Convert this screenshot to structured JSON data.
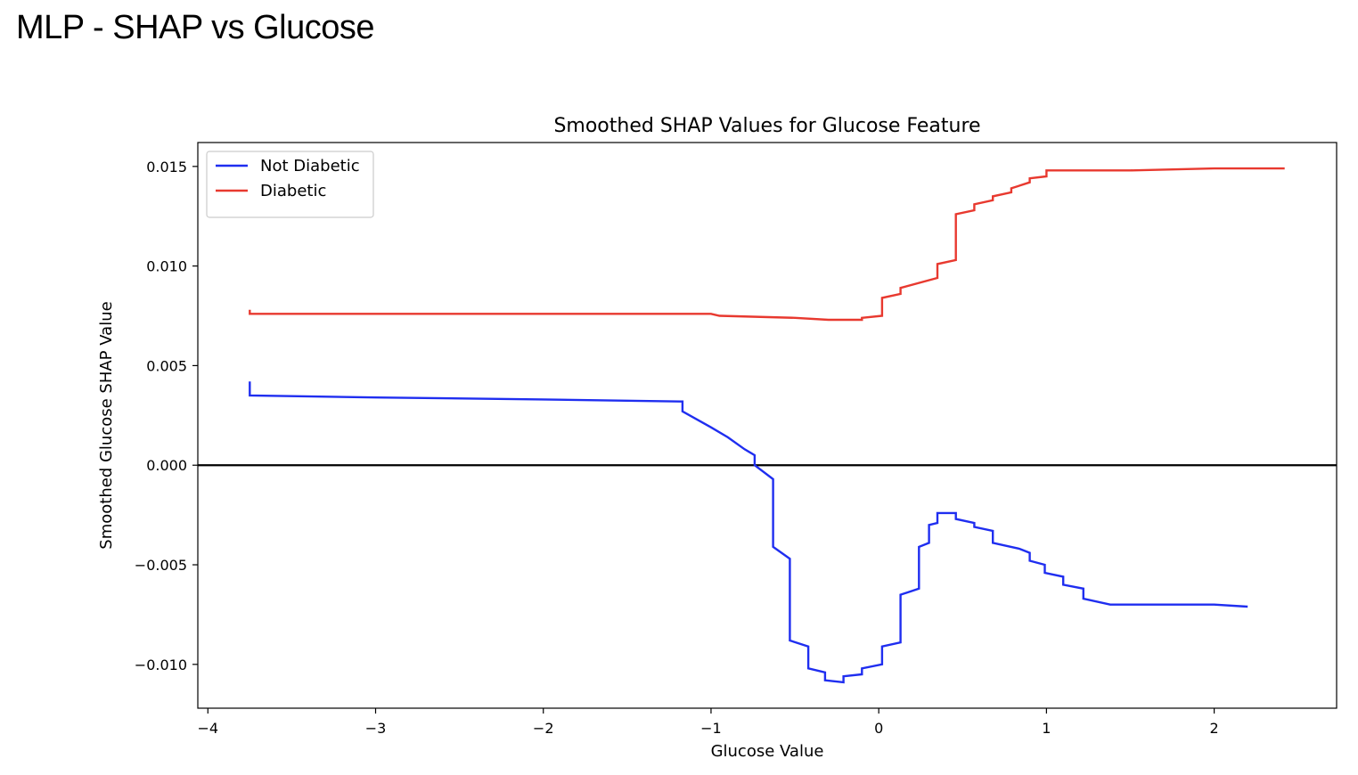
{
  "page_title": "MLP - SHAP vs Glucose",
  "chart_data": {
    "type": "line",
    "title": "Smoothed SHAP Values for Glucose Feature",
    "xlabel": "Glucose Value",
    "ylabel": "Smoothed Glucose SHAP Value",
    "xlim": [
      -4.06,
      2.73
    ],
    "ylim": [
      -0.0122,
      0.0162
    ],
    "xticks": [
      {
        "value": -4,
        "label": "−4"
      },
      {
        "value": -3,
        "label": "−3"
      },
      {
        "value": -2,
        "label": "−2"
      },
      {
        "value": -1,
        "label": "−1"
      },
      {
        "value": 0,
        "label": "0"
      },
      {
        "value": 1,
        "label": "1"
      },
      {
        "value": 2,
        "label": "2"
      }
    ],
    "yticks": [
      {
        "value": 0.015,
        "label": "0.015"
      },
      {
        "value": 0.01,
        "label": "0.010"
      },
      {
        "value": 0.005,
        "label": "0.005"
      },
      {
        "value": 0.0,
        "label": "0.000"
      },
      {
        "value": -0.005,
        "label": "−0.005"
      },
      {
        "value": -0.01,
        "label": "−0.010"
      }
    ],
    "hline": {
      "y": 0.0,
      "color": "#000000"
    },
    "grid": false,
    "legend_position": "top-left",
    "series": [
      {
        "name": "Not Diabetic",
        "color": "#1f2ef0",
        "points": [
          [
            -3.75,
            0.0042
          ],
          [
            -3.75,
            0.0035
          ],
          [
            -3.0,
            0.0034
          ],
          [
            -2.0,
            0.0033
          ],
          [
            -1.17,
            0.0032
          ],
          [
            -1.17,
            0.0027
          ],
          [
            -1.0,
            0.0019
          ],
          [
            -0.9,
            0.0014
          ],
          [
            -0.8,
            0.0008
          ],
          [
            -0.74,
            0.0005
          ],
          [
            -0.74,
            0.0
          ],
          [
            -0.63,
            -0.0007
          ],
          [
            -0.63,
            -0.0041
          ],
          [
            -0.53,
            -0.0047
          ],
          [
            -0.53,
            -0.0088
          ],
          [
            -0.42,
            -0.0091
          ],
          [
            -0.42,
            -0.0102
          ],
          [
            -0.32,
            -0.0104
          ],
          [
            -0.32,
            -0.0108
          ],
          [
            -0.21,
            -0.0109
          ],
          [
            -0.21,
            -0.0106
          ],
          [
            -0.1,
            -0.0105
          ],
          [
            -0.1,
            -0.0102
          ],
          [
            0.02,
            -0.01
          ],
          [
            0.02,
            -0.0091
          ],
          [
            0.13,
            -0.0089
          ],
          [
            0.13,
            -0.0065
          ],
          [
            0.24,
            -0.0062
          ],
          [
            0.24,
            -0.0041
          ],
          [
            0.3,
            -0.0039
          ],
          [
            0.3,
            -0.003
          ],
          [
            0.35,
            -0.0029
          ],
          [
            0.35,
            -0.0024
          ],
          [
            0.46,
            -0.0024
          ],
          [
            0.46,
            -0.0027
          ],
          [
            0.57,
            -0.0029
          ],
          [
            0.57,
            -0.0031
          ],
          [
            0.68,
            -0.0033
          ],
          [
            0.68,
            -0.0039
          ],
          [
            0.84,
            -0.0042
          ],
          [
            0.9,
            -0.0044
          ],
          [
            0.9,
            -0.0048
          ],
          [
            0.99,
            -0.005
          ],
          [
            0.99,
            -0.0054
          ],
          [
            1.1,
            -0.0056
          ],
          [
            1.1,
            -0.006
          ],
          [
            1.22,
            -0.0062
          ],
          [
            1.22,
            -0.0067
          ],
          [
            1.38,
            -0.007
          ],
          [
            2.0,
            -0.007
          ],
          [
            2.2,
            -0.0071
          ]
        ]
      },
      {
        "name": "Diabetic",
        "color": "#e8392f",
        "points": [
          [
            -3.75,
            0.0078
          ],
          [
            -3.75,
            0.0076
          ],
          [
            -3.0,
            0.0076
          ],
          [
            -2.0,
            0.0076
          ],
          [
            -1.0,
            0.0076
          ],
          [
            -0.95,
            0.0075
          ],
          [
            -0.5,
            0.0074
          ],
          [
            -0.3,
            0.0073
          ],
          [
            -0.25,
            0.0073
          ],
          [
            -0.1,
            0.0073
          ],
          [
            -0.1,
            0.0074
          ],
          [
            0.02,
            0.0075
          ],
          [
            0.02,
            0.0084
          ],
          [
            0.13,
            0.0086
          ],
          [
            0.13,
            0.0089
          ],
          [
            0.35,
            0.0094
          ],
          [
            0.35,
            0.0101
          ],
          [
            0.46,
            0.0103
          ],
          [
            0.46,
            0.0126
          ],
          [
            0.57,
            0.0128
          ],
          [
            0.57,
            0.0131
          ],
          [
            0.68,
            0.0133
          ],
          [
            0.68,
            0.0135
          ],
          [
            0.79,
            0.0137
          ],
          [
            0.79,
            0.0139
          ],
          [
            0.9,
            0.0142
          ],
          [
            0.9,
            0.0144
          ],
          [
            1.0,
            0.0145
          ],
          [
            1.0,
            0.0148
          ],
          [
            1.1,
            0.0148
          ],
          [
            1.5,
            0.0148
          ],
          [
            2.0,
            0.0149
          ],
          [
            2.42,
            0.0149
          ]
        ]
      }
    ]
  }
}
